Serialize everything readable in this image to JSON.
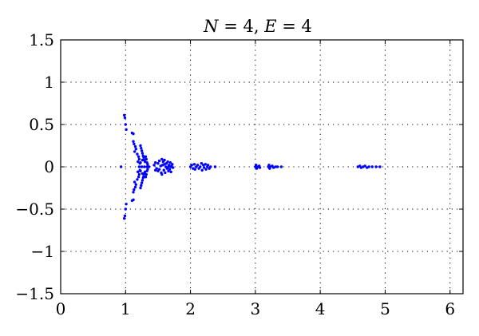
{
  "chart_data": {
    "type": "scatter",
    "title": {
      "var1": "N",
      "val1": " = 4, ",
      "var2": "E",
      "val2": " = 4"
    },
    "xlabel": "",
    "ylabel": "",
    "xlim": [
      0,
      6.2
    ],
    "ylim": [
      -1.5,
      1.5
    ],
    "grid": true,
    "x_ticks": [
      0,
      1,
      2,
      3,
      4,
      5,
      6
    ],
    "x_tick_labels": [
      "0",
      "1",
      "2",
      "3",
      "4",
      "5",
      "6"
    ],
    "y_ticks": [
      1.5,
      1,
      0.5,
      0,
      -0.5,
      -1,
      -1.5
    ],
    "y_tick_labels": [
      "1.5",
      "1",
      "0.5",
      "0",
      "−0.5",
      "−1",
      "−1.5"
    ],
    "marker_color": "#0000ff",
    "points": [
      [
        0.93,
        0.0
      ],
      [
        0.98,
        0.61
      ],
      [
        0.99,
        0.58
      ],
      [
        0.98,
        -0.61
      ],
      [
        0.99,
        -0.58
      ],
      [
        1.0,
        0.5
      ],
      [
        1.0,
        -0.5
      ],
      [
        1.01,
        0.44
      ],
      [
        1.01,
        -0.44
      ],
      [
        1.1,
        0.4
      ],
      [
        1.12,
        0.39
      ],
      [
        1.1,
        -0.4
      ],
      [
        1.12,
        -0.39
      ],
      [
        1.12,
        0.3
      ],
      [
        1.13,
        0.27
      ],
      [
        1.12,
        -0.3
      ],
      [
        1.13,
        -0.27
      ],
      [
        1.15,
        0.24
      ],
      [
        1.16,
        0.21
      ],
      [
        1.15,
        -0.24
      ],
      [
        1.16,
        -0.21
      ],
      [
        1.14,
        0.18
      ],
      [
        1.18,
        0.15
      ],
      [
        1.14,
        -0.18
      ],
      [
        1.18,
        -0.15
      ],
      [
        1.2,
        0.12
      ],
      [
        1.21,
        0.09
      ],
      [
        1.2,
        -0.12
      ],
      [
        1.21,
        -0.09
      ],
      [
        1.19,
        0.06
      ],
      [
        1.22,
        0.04
      ],
      [
        1.19,
        -0.06
      ],
      [
        1.22,
        -0.04
      ],
      [
        1.23,
        0.25
      ],
      [
        1.24,
        0.22
      ],
      [
        1.23,
        -0.25
      ],
      [
        1.24,
        -0.22
      ],
      [
        1.25,
        0.19
      ],
      [
        1.26,
        0.16
      ],
      [
        1.25,
        -0.19
      ],
      [
        1.26,
        -0.16
      ],
      [
        1.27,
        0.13
      ],
      [
        1.28,
        0.11
      ],
      [
        1.27,
        -0.13
      ],
      [
        1.28,
        -0.11
      ],
      [
        1.29,
        0.08
      ],
      [
        1.3,
        0.06
      ],
      [
        1.29,
        -0.08
      ],
      [
        1.3,
        -0.06
      ],
      [
        1.26,
        0.08
      ],
      [
        1.32,
        0.09
      ],
      [
        1.26,
        -0.08
      ],
      [
        1.32,
        -0.09
      ],
      [
        1.33,
        0.05
      ],
      [
        1.34,
        0.03
      ],
      [
        1.33,
        -0.05
      ],
      [
        1.34,
        -0.03
      ],
      [
        1.23,
        0.05
      ],
      [
        1.31,
        0.12
      ],
      [
        1.23,
        -0.05
      ],
      [
        1.31,
        -0.12
      ],
      [
        1.21,
        0.0
      ],
      [
        1.25,
        0.0
      ],
      [
        1.29,
        0.0
      ],
      [
        1.33,
        0.0
      ],
      [
        1.36,
        0.0
      ],
      [
        1.44,
        0.02
      ],
      [
        1.46,
        0.05
      ],
      [
        1.48,
        -0.02
      ],
      [
        1.5,
        -0.05
      ],
      [
        1.5,
        0.04
      ],
      [
        1.52,
        0.07
      ],
      [
        1.54,
        0.01
      ],
      [
        1.55,
        -0.07
      ],
      [
        1.52,
        -0.03
      ],
      [
        1.58,
        0.06
      ],
      [
        1.57,
        0.02
      ],
      [
        1.59,
        -0.04
      ],
      [
        1.6,
        0.08
      ],
      [
        1.61,
        -0.07
      ],
      [
        1.62,
        0.0
      ],
      [
        1.63,
        0.04
      ],
      [
        1.64,
        -0.02
      ],
      [
        1.65,
        0.06
      ],
      [
        1.66,
        -0.05
      ],
      [
        1.67,
        0.02
      ],
      [
        1.68,
        -0.03
      ],
      [
        1.69,
        0.05
      ],
      [
        1.7,
        -0.06
      ],
      [
        1.71,
        0.01
      ],
      [
        1.72,
        0.03
      ],
      [
        1.73,
        -0.01
      ],
      [
        1.46,
        -0.04
      ],
      [
        1.56,
        0.09
      ],
      [
        1.56,
        -0.09
      ],
      [
        1.6,
        0.03
      ],
      [
        1.66,
        0.0
      ],
      [
        1.7,
        0.0
      ],
      [
        2.0,
        0.0
      ],
      [
        2.02,
        0.02
      ],
      [
        2.04,
        -0.02
      ],
      [
        2.06,
        0.03
      ],
      [
        2.07,
        -0.03
      ],
      [
        2.09,
        0.0
      ],
      [
        2.11,
        0.02
      ],
      [
        2.13,
        -0.02
      ],
      [
        2.15,
        0.0
      ],
      [
        2.17,
        0.04
      ],
      [
        2.18,
        -0.04
      ],
      [
        2.2,
        0.02
      ],
      [
        2.21,
        -0.01
      ],
      [
        2.23,
        0.03
      ],
      [
        2.24,
        -0.03
      ],
      [
        2.26,
        0.0
      ],
      [
        2.27,
        0.02
      ],
      [
        2.29,
        -0.02
      ],
      [
        2.31,
        0.0
      ],
      [
        2.38,
        0.0
      ],
      [
        3.0,
        0.0
      ],
      [
        3.01,
        0.02
      ],
      [
        3.02,
        -0.02
      ],
      [
        3.04,
        0.0
      ],
      [
        3.06,
        0.01
      ],
      [
        3.07,
        -0.01
      ],
      [
        3.2,
        0.0
      ],
      [
        3.21,
        0.02
      ],
      [
        3.22,
        -0.02
      ],
      [
        3.23,
        0.0
      ],
      [
        3.26,
        0.01
      ],
      [
        3.28,
        -0.01
      ],
      [
        3.31,
        0.0
      ],
      [
        3.34,
        0.0
      ],
      [
        3.4,
        0.0
      ],
      [
        4.58,
        0.0
      ],
      [
        4.61,
        0.01
      ],
      [
        4.63,
        -0.01
      ],
      [
        4.66,
        0.0
      ],
      [
        4.69,
        0.01
      ],
      [
        4.72,
        -0.01
      ],
      [
        4.75,
        0.0
      ],
      [
        4.8,
        0.0
      ],
      [
        4.86,
        0.0
      ],
      [
        4.92,
        0.0
      ]
    ]
  }
}
